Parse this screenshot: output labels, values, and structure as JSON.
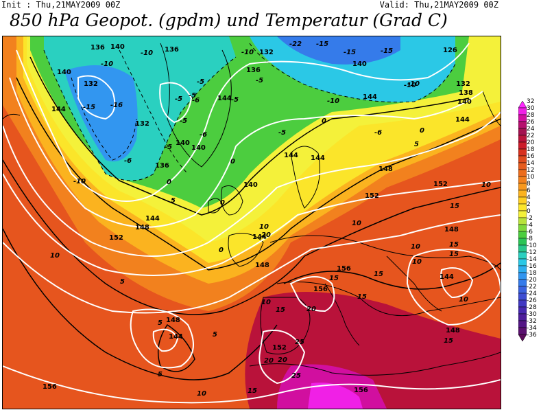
{
  "header": {
    "init": "Init : Thu,21MAY2009 00Z",
    "valid": "Valid: Thu,21MAY2009 00Z",
    "title": "850 hPa Geopot. (gpdm) und Temperatur (Grad C)"
  },
  "colors": {
    "frame": "#000000",
    "geopotential_contour": "#ffffff",
    "temperature_contour": "#000000",
    "coastline": "#000000"
  },
  "colorbar": {
    "units_hint": "Grad C",
    "levels": [
      {
        "label": "32",
        "color": "#ff28ff"
      },
      {
        "label": "30",
        "color": "#f020e6"
      },
      {
        "label": "28",
        "color": "#d10f9f"
      },
      {
        "label": "26",
        "color": "#b5106e"
      },
      {
        "label": "24",
        "color": "#a3104f"
      },
      {
        "label": "22",
        "color": "#b9123a"
      },
      {
        "label": "20",
        "color": "#cc1c2a"
      },
      {
        "label": "18",
        "color": "#d7301e"
      },
      {
        "label": "16",
        "color": "#e04a1c"
      },
      {
        "label": "14",
        "color": "#e65b1d"
      },
      {
        "label": "12",
        "color": "#ec6d1d"
      },
      {
        "label": "10",
        "color": "#f2811e"
      },
      {
        "label": "8",
        "color": "#f7981f"
      },
      {
        "label": "6",
        "color": "#fbb31f"
      },
      {
        "label": "4",
        "color": "#fdcf22"
      },
      {
        "label": "2",
        "color": "#fbe52a"
      },
      {
        "label": "0",
        "color": "#f4f13a"
      },
      {
        "label": "-2",
        "color": "#b8e23c"
      },
      {
        "label": "-4",
        "color": "#7fd83c"
      },
      {
        "label": "-6",
        "color": "#4ccd3f"
      },
      {
        "label": "-8",
        "color": "#2bc456"
      },
      {
        "label": "-10",
        "color": "#29c78b"
      },
      {
        "label": "-12",
        "color": "#2ad0c0"
      },
      {
        "label": "-14",
        "color": "#2bc8e6"
      },
      {
        "label": "-16",
        "color": "#2eaff0"
      },
      {
        "label": "-18",
        "color": "#3296f0"
      },
      {
        "label": "-20",
        "color": "#357bea"
      },
      {
        "label": "-22",
        "color": "#3a62df"
      },
      {
        "label": "-24",
        "color": "#3d4dd2"
      },
      {
        "label": "-26",
        "color": "#4038c2"
      },
      {
        "label": "-28",
        "color": "#4628b0"
      },
      {
        "label": "-30",
        "color": "#4d1d9b"
      },
      {
        "label": "-32",
        "color": "#541685"
      },
      {
        "label": "-34",
        "color": "#5b1170"
      },
      {
        "label": "-36",
        "color": "#5a0c5a"
      }
    ]
  },
  "map_labels": {
    "geopotential": [
      "140",
      "136",
      "132",
      "126",
      "140",
      "132",
      "136",
      "140",
      "144",
      "144",
      "144",
      "132",
      "136",
      "140",
      "140",
      "144",
      "136",
      "132",
      "138",
      "140",
      "144",
      "144",
      "148",
      "140",
      "152",
      "152",
      "148",
      "148",
      "144",
      "144",
      "152",
      "156",
      "156",
      "156",
      "148",
      "148",
      "144",
      "152",
      "156",
      "144",
      "148"
    ],
    "temperature": [
      "-22",
      "-15",
      "-15",
      "-15",
      "-10",
      "-10",
      "-10",
      "-10",
      "-10",
      "-5",
      "-5",
      "-5",
      "-5",
      "-15",
      "-16",
      "-10",
      "-5",
      "-5",
      "-5",
      "-6",
      "-6",
      "-6",
      "-5",
      "0",
      "0",
      "0",
      "0",
      "0",
      "0",
      "5",
      "5",
      "5",
      "5",
      "5",
      "5",
      "10",
      "10",
      "10",
      "10",
      "10",
      "10",
      "10",
      "10",
      "15",
      "15",
      "15",
      "15",
      "15",
      "15",
      "15",
      "15",
      "20",
      "20",
      "25",
      "25",
      "20",
      "15",
      "10",
      "20",
      "-10",
      "-6"
    ]
  }
}
